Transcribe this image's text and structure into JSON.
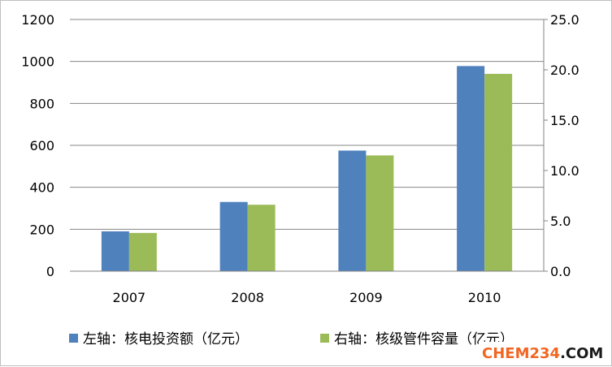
{
  "chart_data": {
    "type": "bar",
    "categories": [
      "2007",
      "2008",
      "2009",
      "2010"
    ],
    "series": [
      {
        "name": "左轴：核电投资额（亿元）",
        "axis": "left",
        "color": "#4F81BD",
        "values": [
          190,
          330,
          575,
          978
        ]
      },
      {
        "name": "右轴：核级管件容量（亿元）",
        "axis": "right",
        "color": "#9BBB59",
        "values": [
          3.8,
          6.6,
          11.5,
          19.6
        ]
      }
    ],
    "y_left": {
      "range": [
        0,
        1200
      ],
      "ticks": [
        "0",
        "200",
        "400",
        "600",
        "800",
        "1000",
        "1200"
      ]
    },
    "y_right": {
      "range": [
        0,
        25
      ],
      "ticks": [
        "0.0",
        "5.0",
        "10.0",
        "15.0",
        "20.0",
        "25.0"
      ]
    },
    "grid": true,
    "legend_position": "bottom"
  },
  "watermark": {
    "text": "CHEM234.COM",
    "parts": [
      "CHEM234",
      ".COM"
    ],
    "colors": [
      "#F26522",
      "#1A1A1A"
    ]
  }
}
